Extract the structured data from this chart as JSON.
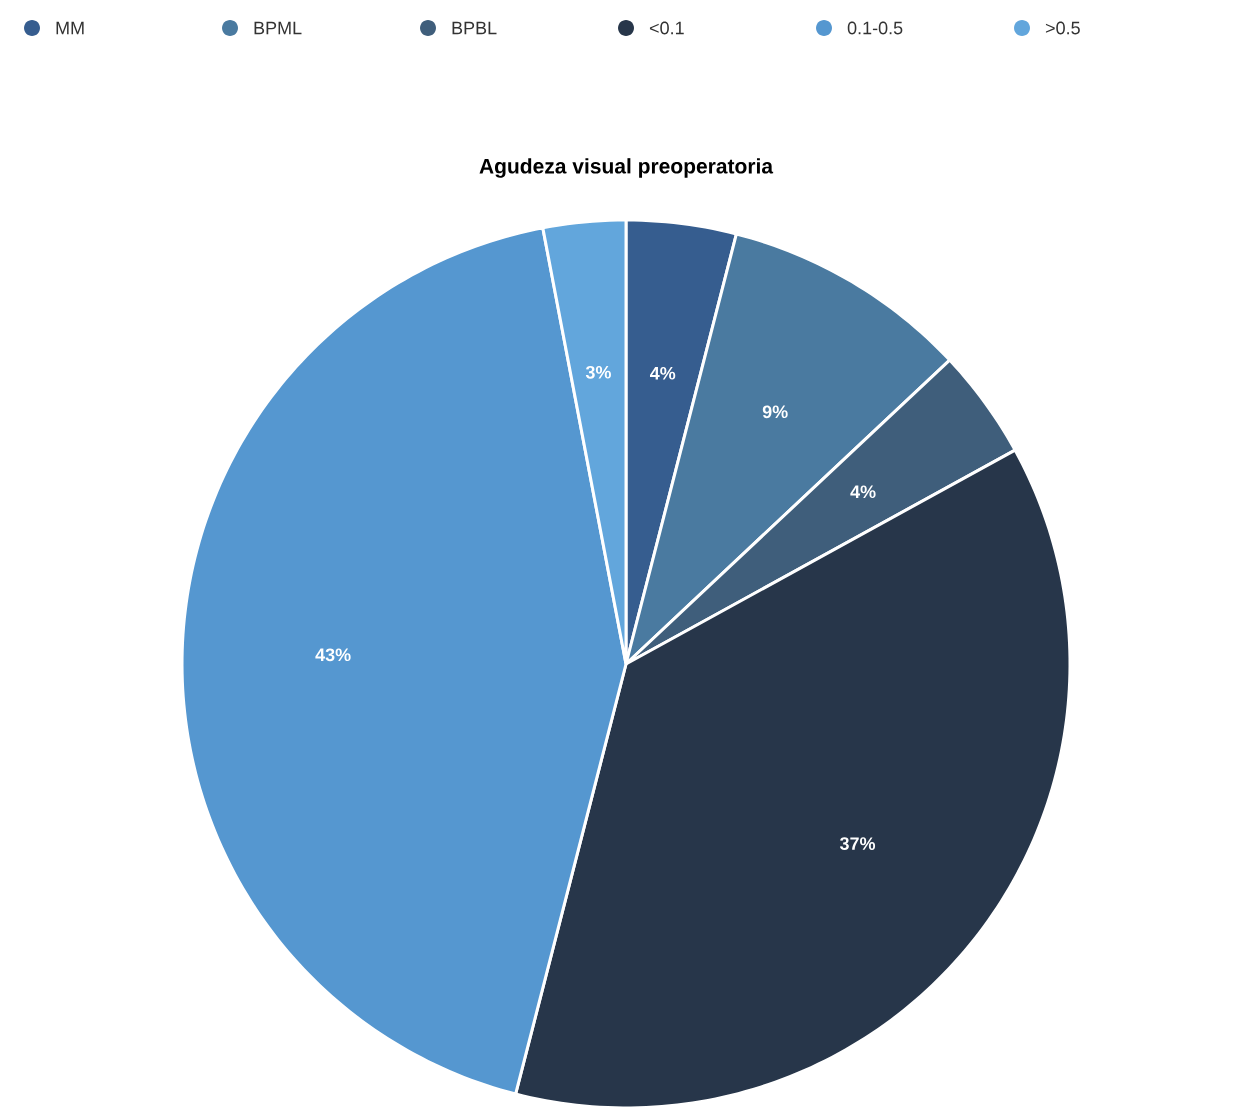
{
  "chart_data": {
    "type": "pie",
    "title": "Agudeza visual preoperatoria",
    "categories": [
      "MM",
      "BPML",
      "BPBL",
      "<0.1",
      "0.1-0.5",
      ">0.5"
    ],
    "values": [
      4,
      9,
      4,
      37,
      43,
      3
    ],
    "colors": [
      "#365d8f",
      "#4a7aa0",
      "#3f5e7b",
      "#27364a",
      "#5597d0",
      "#62a6dc"
    ],
    "value_labels": [
      "4%",
      "9%",
      "4%",
      "37%",
      "43%",
      "3%"
    ],
    "legend": "top"
  }
}
